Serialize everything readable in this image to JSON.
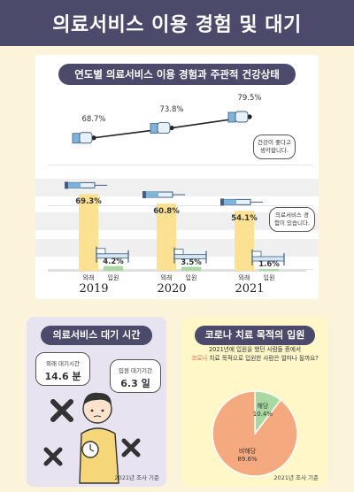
{
  "header": {
    "title": "의료서비스 이용 경험 및 대기"
  },
  "main": {
    "title": "연도별 의료서비스 이용 경험과 주관적 건강상태",
    "bubble_health": "건강이 좋다고 생각합니다.",
    "bubble_service": "의료서비스 경험이 있습니다."
  },
  "chart_data": [
    {
      "type": "bar",
      "categories": [
        "2019",
        "2020",
        "2021"
      ],
      "subcategories": [
        "외래",
        "입원"
      ],
      "series": [
        {
          "name": "외래",
          "values": [
            69.3,
            60.8,
            54.1
          ],
          "labels": [
            "69.3%",
            "60.8%",
            "54.1%"
          ],
          "color": "#fce193"
        },
        {
          "name": "입원",
          "values": [
            4.2,
            3.5,
            1.6
          ],
          "labels": [
            "4.2%",
            "3.5%",
            "1.6%"
          ],
          "color": "#a9d8a0"
        }
      ],
      "line_series": {
        "values": [
          68.7,
          73.8,
          79.5
        ],
        "labels": [
          "68.7%",
          "73.8%",
          "79.5%"
        ]
      },
      "title": "연도별 의료서비스 이용 경험과 주관적 건강상태",
      "grid": true
    },
    {
      "type": "pie",
      "title": "코로나 치료 목적의 입원",
      "slices": [
        {
          "name": "해당",
          "value": 10.4,
          "label": "10.4%",
          "color": "#a9d8a0"
        },
        {
          "name": "비해당",
          "value": 89.6,
          "label": "89.6%",
          "color": "#f4a97f"
        }
      ]
    }
  ],
  "wait": {
    "title": "의료서비스 대기 시간",
    "outpatient_label": "외래 대기시간",
    "outpatient_value": "14.6 분",
    "inpatient_label": "입원 대기기간",
    "inpatient_value": "6.3 일",
    "footnote": "2021년 조사 기준"
  },
  "covid": {
    "title": "코로나 치료 목적의 입원",
    "question_part1": "2021년에 입원을 했던 사람들 중에서",
    "question_highlight": "코로나",
    "question_part2": " 치료 목적으로 입원한 사람은 얼마나 될까요?",
    "footnote": "2021년 조사 기준"
  },
  "colors": {
    "navy": "#4b4a6b",
    "cream": "#fbf3da",
    "yellow_bar": "#fce193",
    "green_bar": "#a9d8a0",
    "orange": "#f4a97f",
    "lavender": "#e7e3f1"
  }
}
